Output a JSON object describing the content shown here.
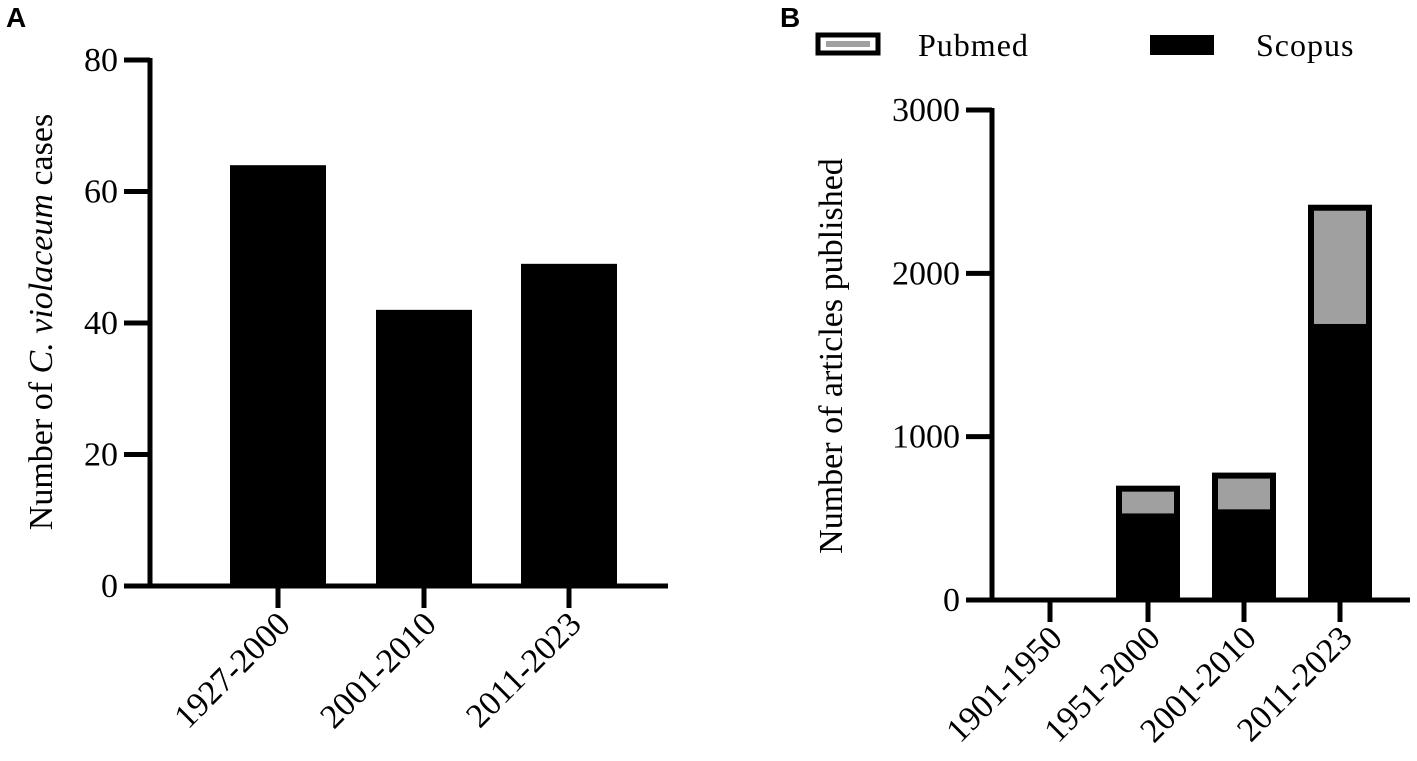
{
  "chart_data": [
    {
      "panel": "A",
      "type": "bar",
      "categories": [
        "1927-2000",
        "2001-2010",
        "2011-2023"
      ],
      "values": [
        64,
        42,
        49
      ],
      "ylabel_parts": [
        "Number of ",
        "C. violaceum",
        " cases"
      ],
      "yticks": [
        "0",
        "20",
        "40",
        "60",
        "80"
      ],
      "ylim": [
        0,
        80
      ],
      "bar_color": "#000000"
    },
    {
      "panel": "B",
      "type": "bar",
      "stacked_overlay": true,
      "categories": [
        "1901-1950",
        "1951-2000",
        "2001-2010",
        "2011-2023"
      ],
      "series": [
        {
          "name": "Pubmed",
          "color": "#a0a0a0",
          "values": [
            0,
            530,
            555,
            1690
          ]
        },
        {
          "name": "Scopus",
          "color": "#000000",
          "values": [
            0,
            700,
            780,
            2420
          ]
        }
      ],
      "ylabel": "Number of articles published",
      "yticks": [
        "0",
        "1000",
        "2000",
        "3000"
      ],
      "ylim": [
        0,
        3000
      ],
      "legend_position": "top"
    }
  ]
}
